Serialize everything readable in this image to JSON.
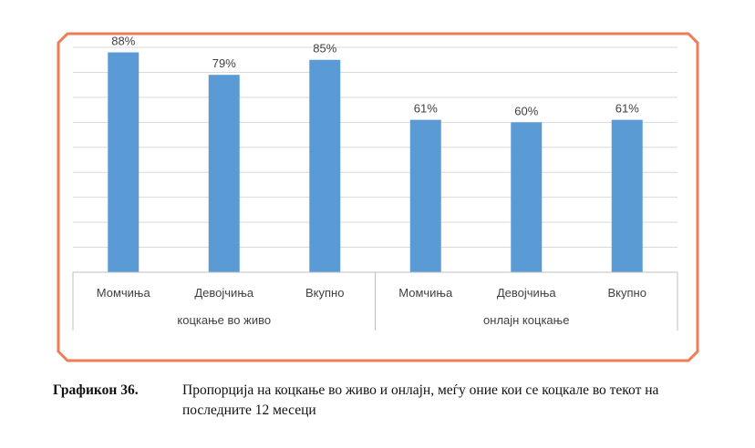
{
  "chart_data": {
    "type": "bar",
    "groups": [
      {
        "name": "коцкање во живо",
        "categories": [
          "Момчиња",
          "Девојчиња",
          "Вкупно"
        ],
        "values": [
          88,
          79,
          85
        ]
      },
      {
        "name": "онлајн коцкање",
        "categories": [
          "Момчиња",
          "Девојчиња",
          "Вкупно"
        ],
        "values": [
          61,
          60,
          61
        ]
      }
    ],
    "data_labels": [
      [
        "88%",
        "79%",
        "85%"
      ],
      [
        "61%",
        "60%",
        "61%"
      ]
    ],
    "ylim": [
      0,
      90
    ],
    "grid": true,
    "bar_color": "#5b9bd5",
    "frame_color": "#ed7d55",
    "gridline_color": "#d9d9d9"
  },
  "caption": {
    "label": "Графикон 36.",
    "text": "Пропорција на коцкање во живо и онлајн, меѓу оние кои се коцкале во текот на последните 12 месеци"
  }
}
